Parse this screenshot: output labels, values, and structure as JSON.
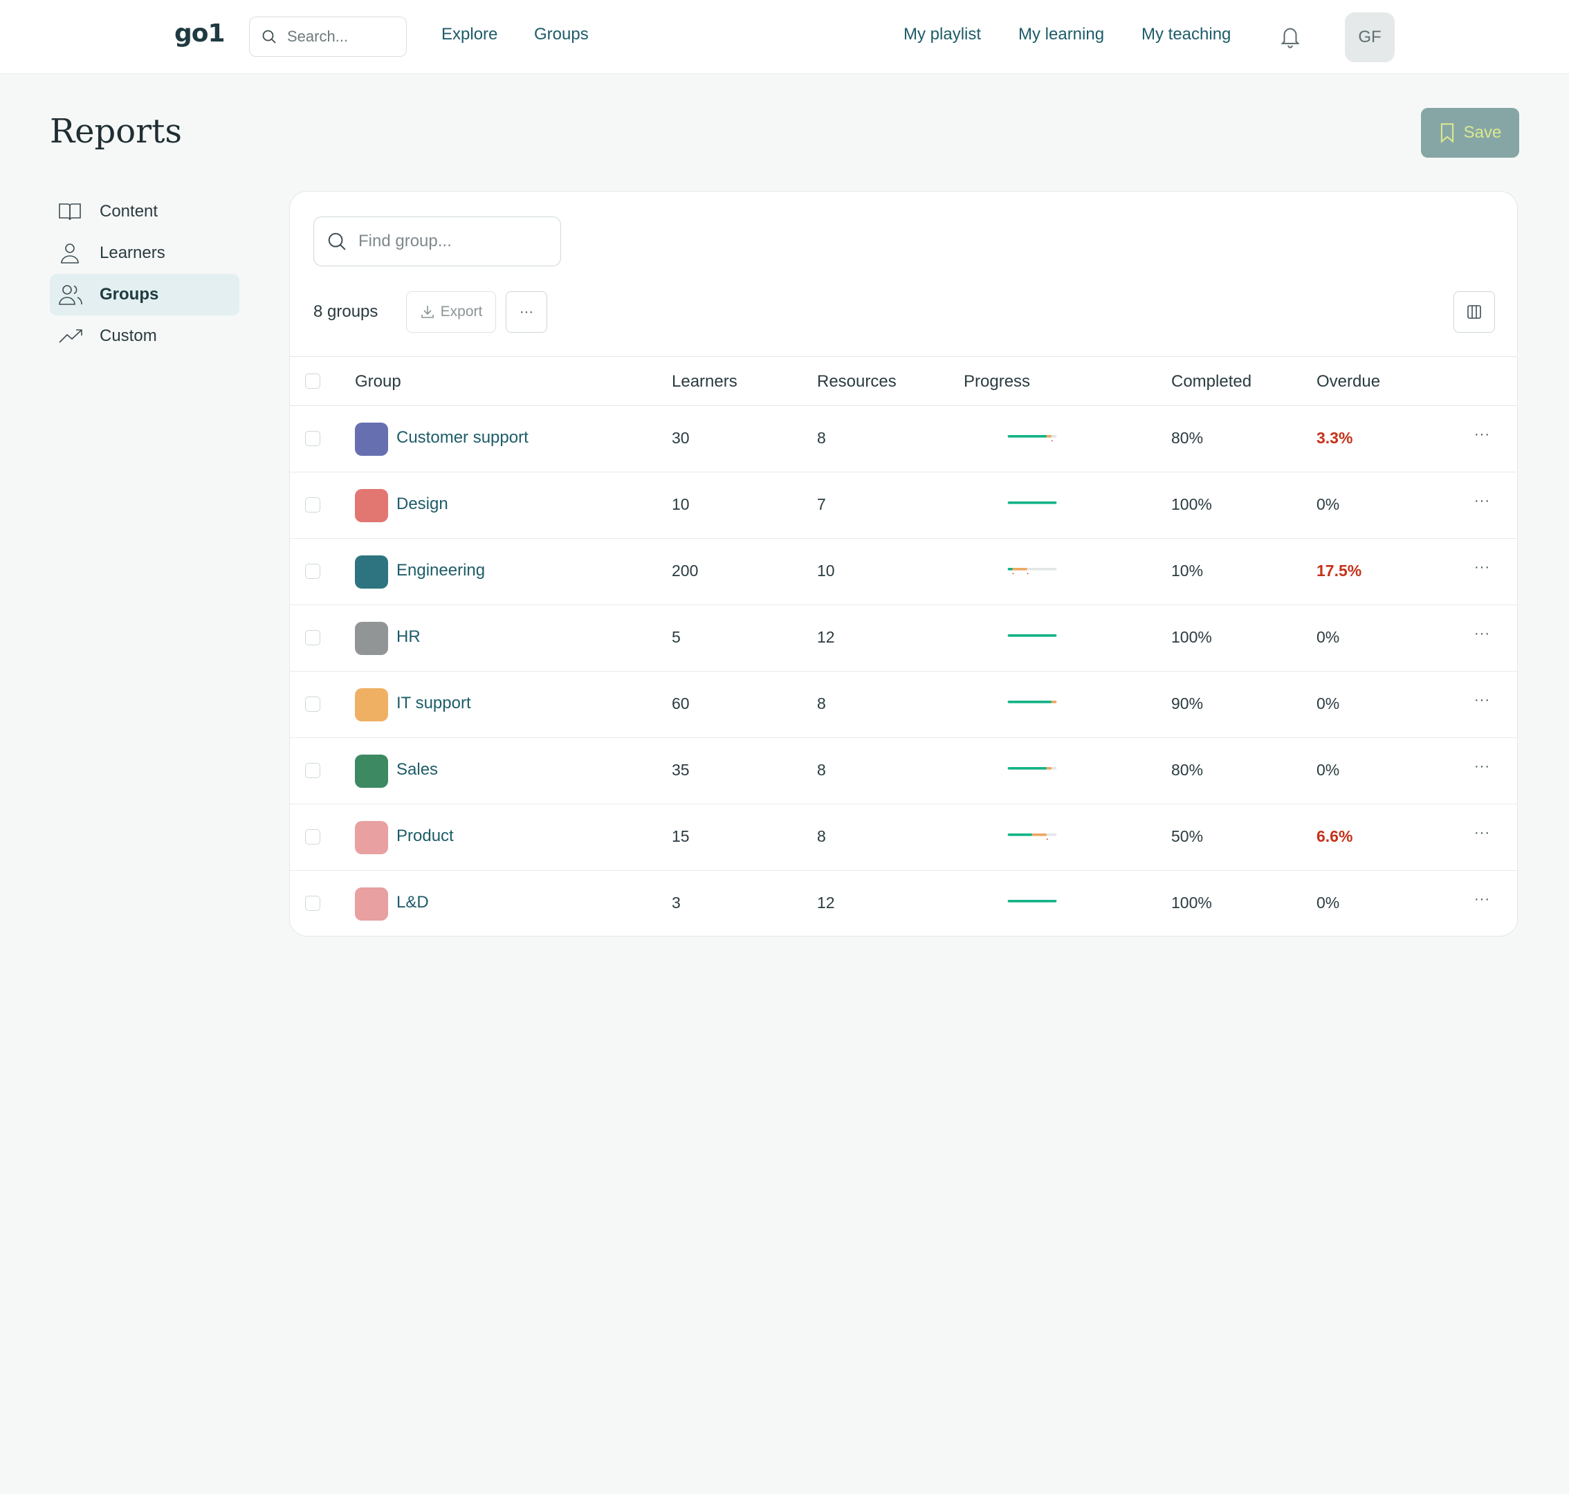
{
  "nav": {
    "logo": "go1",
    "search_placeholder": "Search...",
    "links_left": [
      "Explore",
      "Groups"
    ],
    "links_right": [
      "My playlist",
      "My learning",
      "My teaching"
    ],
    "avatar_initials": "GF"
  },
  "page": {
    "title": "Reports",
    "save_label": "Save"
  },
  "sidebar": {
    "items": [
      {
        "label": "Content",
        "icon": "book-open-icon",
        "active": false
      },
      {
        "label": "Learners",
        "icon": "user-icon",
        "active": false
      },
      {
        "label": "Groups",
        "icon": "users-icon",
        "active": true
      },
      {
        "label": "Custom",
        "icon": "trending-up-icon",
        "active": false
      }
    ]
  },
  "toolbar": {
    "find_placeholder": "Find group...",
    "count_label": "8 groups",
    "export_label": "Export",
    "more_label": "···"
  },
  "table": {
    "headers": [
      "Group",
      "Learners",
      "Resources",
      "Progress",
      "Completed",
      "Overdue"
    ],
    "rows": [
      {
        "group": "Customer support",
        "color": "#6670b0",
        "learners": "30",
        "resources": "8",
        "progress": {
          "completed": 0.8,
          "in_progress": 0.1,
          "overdue_markers": [
            0.91
          ]
        },
        "completed": "80%",
        "overdue": "3.3%",
        "overdue_flag": true
      },
      {
        "group": "Design",
        "color": "#e27670",
        "learners": "10",
        "resources": "7",
        "progress": {
          "completed": 1.0,
          "in_progress": 0,
          "overdue_markers": []
        },
        "completed": "100%",
        "overdue": "0%",
        "overdue_flag": false
      },
      {
        "group": "Engineering",
        "color": "#2e7480",
        "learners": "200",
        "resources": "10",
        "progress": {
          "completed": 0.1,
          "in_progress": 0.3,
          "overdue_markers": [
            0.11,
            0.41
          ]
        },
        "completed": "10%",
        "overdue": "17.5%",
        "overdue_flag": true
      },
      {
        "group": "HR",
        "color": "#919595",
        "learners": "5",
        "resources": "12",
        "progress": {
          "completed": 1.0,
          "in_progress": 0,
          "overdue_markers": []
        },
        "completed": "100%",
        "overdue": "0%",
        "overdue_flag": false
      },
      {
        "group": "IT support",
        "color": "#f0b064",
        "learners": "60",
        "resources": "8",
        "progress": {
          "completed": 0.9,
          "in_progress": 0.1,
          "overdue_markers": []
        },
        "completed": "90%",
        "overdue": "0%",
        "overdue_flag": false
      },
      {
        "group": "Sales",
        "color": "#3d8962",
        "learners": "35",
        "resources": "8",
        "progress": {
          "completed": 0.8,
          "in_progress": 0.1,
          "overdue_markers": []
        },
        "completed": "80%",
        "overdue": "0%",
        "overdue_flag": false
      },
      {
        "group": "Product",
        "color": "#e8a0a0",
        "learners": "15",
        "resources": "8",
        "progress": {
          "completed": 0.5,
          "in_progress": 0.3,
          "overdue_markers": [
            0.81
          ]
        },
        "completed": "50%",
        "overdue": "6.6%",
        "overdue_flag": true
      },
      {
        "group": "L&D",
        "color": "#e8a0a0",
        "learners": "3",
        "resources": "12",
        "progress": {
          "completed": 1.0,
          "in_progress": 0,
          "overdue_markers": []
        },
        "completed": "100%",
        "overdue": "0%",
        "overdue_flag": false
      }
    ]
  },
  "colors": {
    "progress_complete": "#12b386",
    "progress_in_progress": "#eca862",
    "progress_track": "#e4e7e7",
    "overdue_marker": "#c4321a"
  }
}
